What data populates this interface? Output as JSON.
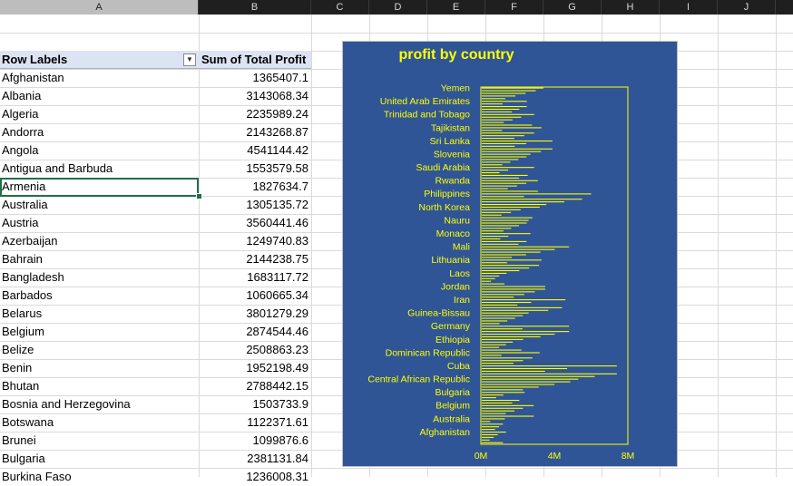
{
  "columns": [
    "A",
    "B",
    "C",
    "D",
    "E",
    "F",
    "G",
    "H",
    "I",
    "J"
  ],
  "active_column": "A",
  "pivot": {
    "header_row_labels": "Row Labels",
    "header_sum": "Sum of Total Profit",
    "rows": [
      {
        "label": "Afghanistan",
        "value": "1365407.1"
      },
      {
        "label": "Albania",
        "value": "3143068.34"
      },
      {
        "label": "Algeria",
        "value": "2235989.24"
      },
      {
        "label": "Andorra",
        "value": "2143268.87"
      },
      {
        "label": "Angola",
        "value": "4541144.42"
      },
      {
        "label": "Antigua and Barbuda",
        "value": "1553579.58"
      },
      {
        "label": "Armenia",
        "value": "1827634.7"
      },
      {
        "label": "Australia",
        "value": "1305135.72"
      },
      {
        "label": "Austria",
        "value": "3560441.46"
      },
      {
        "label": "Azerbaijan",
        "value": "1249740.83"
      },
      {
        "label": "Bahrain",
        "value": "2144238.75"
      },
      {
        "label": "Bangladesh",
        "value": "1683117.72"
      },
      {
        "label": "Barbados",
        "value": "1060665.34"
      },
      {
        "label": "Belarus",
        "value": "3801279.29"
      },
      {
        "label": "Belgium",
        "value": "2874544.46"
      },
      {
        "label": "Belize",
        "value": "2508863.23"
      },
      {
        "label": "Benin",
        "value": "1952198.49"
      },
      {
        "label": "Bhutan",
        "value": "2788442.15"
      },
      {
        "label": "Bosnia and Herzegovina",
        "value": "1503733.9"
      },
      {
        "label": "Botswana",
        "value": "1122371.61"
      },
      {
        "label": "Brunei",
        "value": "1099876.6"
      },
      {
        "label": "Bulgaria",
        "value": "2381131.84"
      },
      {
        "label": "Burkina Faso",
        "value": "1236008.31"
      }
    ]
  },
  "selected_cell": "Armenia",
  "chart_data": {
    "type": "bar",
    "orientation": "horizontal",
    "title": "profit by country",
    "bar_color": "#ffff00",
    "background": "#2f5597",
    "text_color": "#ffff00",
    "xlim": [
      0,
      8000000
    ],
    "x_ticks": [
      "0M",
      "4M",
      "8M"
    ],
    "categories": [
      "Yemen",
      "United Arab Emirates",
      "Trinidad and Tobago",
      "Tajikistan",
      "Sri Lanka",
      "Slovenia",
      "Saudi Arabia",
      "Rwanda",
      "Philippines",
      "North Korea",
      "Nauru",
      "Monaco",
      "Mali",
      "Lithuania",
      "Laos",
      "Jordan",
      "Iran",
      "Guinea-Bissau",
      "Germany",
      "Ethiopia",
      "Dominican Republic",
      "Cuba",
      "Central African Republic",
      "Bulgaria",
      "Belgium",
      "Australia",
      "Afghanistan"
    ],
    "values": [
      3400000,
      2500000,
      2900000,
      3300000,
      3900000,
      2700000,
      2900000,
      3100000,
      6000000,
      3200000,
      2600000,
      2700000,
      4800000,
      3300000,
      1400000,
      3500000,
      4600000,
      2600000,
      4800000,
      2300000,
      3200000,
      7400000,
      5300000,
      2381131.84,
      2874544.46,
      1305135.72,
      1365407.1
    ],
    "bars_per_label": 5
  }
}
